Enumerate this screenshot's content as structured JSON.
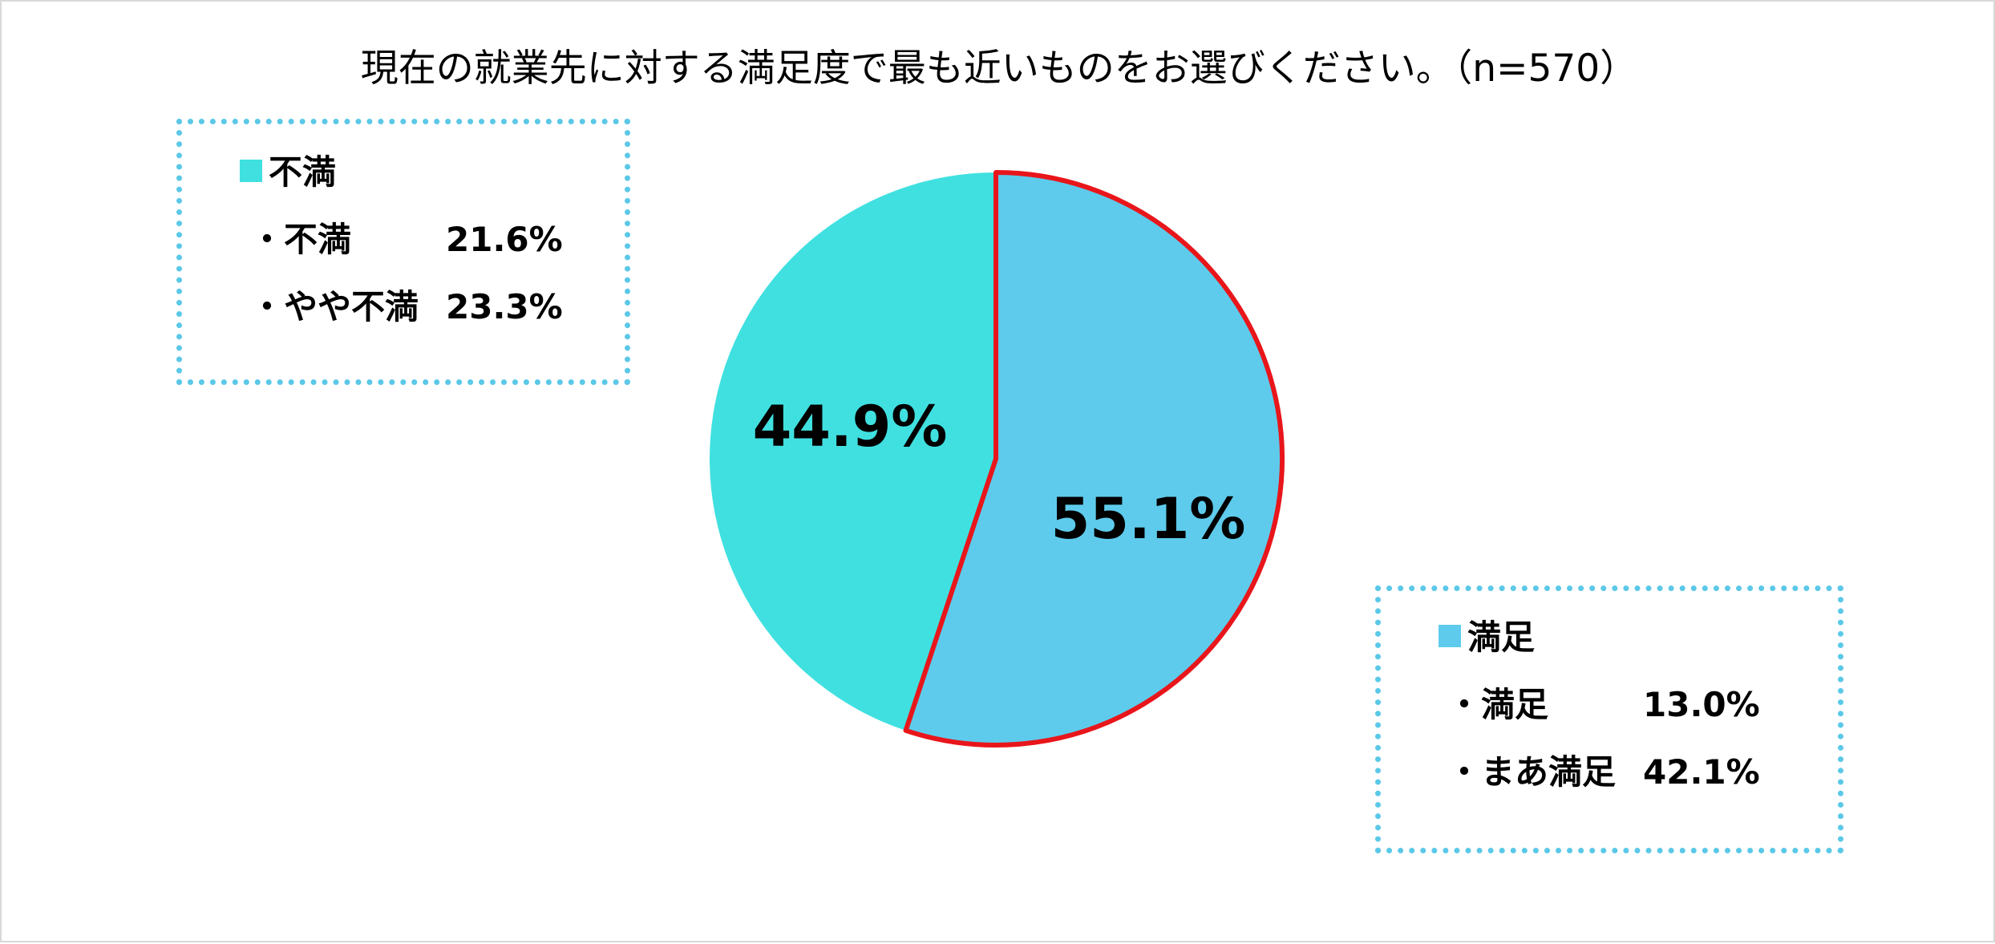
{
  "title": "現在の就業先に対する満足度で最も近いものをお選びください。（n=570）",
  "colors": {
    "dissatisfied": "#40e0e0",
    "satisfied": "#5ecbec",
    "satisfied_outline": "#e8161b",
    "legend_border": "#5bc8e8"
  },
  "legend_dissatisfied": {
    "heading": "不満",
    "rows": [
      {
        "label": "・不満",
        "value": "21.6%"
      },
      {
        "label": "・やや不満",
        "value": "23.3%"
      }
    ]
  },
  "legend_satisfied": {
    "heading": "満足",
    "rows": [
      {
        "label": "・満足",
        "value": "13.0%"
      },
      {
        "label": "・まあ満足",
        "value": "42.1%"
      }
    ]
  },
  "chart_data": {
    "type": "pie",
    "title": "現在の就業先に対する満足度で最も近いものをお選びください。（n=570）",
    "slices": [
      {
        "name": "満足",
        "value": 55.1,
        "label": "55.1%",
        "color": "#5ecbec",
        "outline": "#e8161b"
      },
      {
        "name": "不満",
        "value": 44.9,
        "label": "44.9%",
        "color": "#40e0e0"
      }
    ],
    "breakdown": [
      {
        "group": "不満",
        "name": "不満",
        "value": 21.6
      },
      {
        "group": "不満",
        "name": "やや不満",
        "value": 23.3
      },
      {
        "group": "満足",
        "name": "満足",
        "value": 13.0
      },
      {
        "group": "満足",
        "name": "まあ満足",
        "value": 42.1
      }
    ],
    "start_angle": "12 o'clock",
    "direction": "clockwise"
  }
}
